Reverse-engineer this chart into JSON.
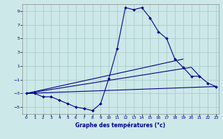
{
  "xlabel": "Graphe des températures (°c)",
  "background_color": "#cce8e8",
  "grid_color": "#aacccc",
  "line_color": "#00008b",
  "main_x": [
    0,
    1,
    2,
    3,
    4,
    5,
    6,
    7,
    8,
    9,
    10,
    11,
    12,
    13,
    14,
    15,
    16,
    17,
    18,
    19,
    20,
    21,
    22,
    23
  ],
  "main_y": [
    -3,
    -3,
    -3.5,
    -3.5,
    -4,
    -4.5,
    -5,
    -5.2,
    -5.5,
    -4.5,
    -0.8,
    3.5,
    9.5,
    9.2,
    9.5,
    8,
    6,
    5,
    2,
    0.8,
    -0.5,
    -0.5,
    -1.5,
    -2
  ],
  "fan_lines": [
    {
      "x": [
        0,
        19
      ],
      "y": [
        -3,
        2
      ]
    },
    {
      "x": [
        0,
        20,
        21
      ],
      "y": [
        -3,
        0.8,
        -0.5
      ]
    },
    {
      "x": [
        0,
        23
      ],
      "y": [
        -3,
        -2
      ]
    }
  ],
  "ylim": [
    -6,
    10
  ],
  "xlim": [
    0,
    23
  ],
  "yticks": [
    -5,
    -3,
    -1,
    1,
    3,
    5,
    7,
    9
  ],
  "xticks": [
    0,
    1,
    2,
    3,
    4,
    5,
    6,
    7,
    8,
    9,
    10,
    11,
    12,
    13,
    14,
    15,
    16,
    17,
    18,
    19,
    20,
    21,
    22,
    23
  ]
}
